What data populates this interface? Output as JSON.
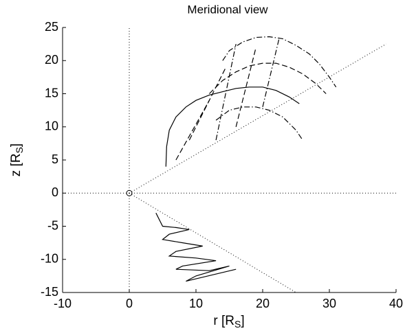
{
  "chart_data": {
    "type": "line",
    "title": "Meridional view",
    "xlabel": {
      "text": "r [R",
      "sub": "S",
      "end": "]"
    },
    "ylabel": {
      "text": "z [R",
      "sub": "S",
      "end": "]"
    },
    "xlim": [
      -10,
      40
    ],
    "xticks": [
      -10,
      0,
      10,
      20,
      30,
      40
    ],
    "ylim": [
      -15,
      25
    ],
    "yticks": [
      -15,
      -10,
      -5,
      0,
      5,
      10,
      15,
      20,
      25
    ],
    "series": [
      {
        "color": "#000000",
        "style": "dotted",
        "x": [
          -10,
          40
        ],
        "values": [
          0,
          0
        ]
      },
      {
        "color": "#000000",
        "style": "dotted",
        "x": [
          0,
          0
        ],
        "values": [
          -15,
          25
        ]
      },
      {
        "color": "#000000",
        "style": "dotted",
        "x": [
          0,
          38.5
        ],
        "values": [
          0,
          22.5
        ]
      },
      {
        "color": "#000000",
        "style": "dotted",
        "x": [
          0,
          25
        ],
        "values": [
          0,
          -15
        ]
      },
      {
        "color": "#000000",
        "style": "solid",
        "x": [
          5.5,
          5.6,
          6,
          7,
          8.5,
          10,
          12,
          14,
          16,
          18,
          20,
          22,
          24,
          25.5
        ],
        "values": [
          4,
          7,
          9.5,
          11.5,
          13,
          14,
          14.8,
          15.3,
          15.8,
          16,
          16,
          15.5,
          14.5,
          13.5
        ]
      },
      {
        "color": "#000000",
        "style": "dashdot",
        "x": [
          14,
          15,
          17,
          19,
          21,
          23,
          25,
          27,
          28.5,
          30,
          31
        ],
        "values": [
          20,
          21.5,
          22.8,
          23.5,
          23.6,
          23.3,
          22.3,
          21,
          19.5,
          17.5,
          16
        ]
      },
      {
        "color": "#000000",
        "style": "dashed",
        "x": [
          12,
          14,
          16,
          18,
          20,
          22,
          24,
          26,
          28,
          29.5
        ],
        "values": [
          15,
          17,
          18.3,
          19.2,
          19.6,
          19.6,
          19,
          18,
          16.5,
          15
        ]
      },
      {
        "color": "#000000",
        "style": "dashdot",
        "x": [
          13,
          15,
          17,
          19,
          21,
          23,
          25,
          26
        ],
        "values": [
          11,
          12.5,
          13,
          13,
          12.5,
          11.5,
          9.5,
          8
        ]
      },
      {
        "color": "#000000",
        "style": "dashed",
        "x": [
          9,
          14.5
        ],
        "values": [
          8,
          19
        ]
      },
      {
        "color": "#000000",
        "style": "dashdot",
        "x": [
          13,
          16
        ],
        "values": [
          8,
          22.5
        ]
      },
      {
        "color": "#000000",
        "style": "dashed",
        "x": [
          16,
          19
        ],
        "values": [
          10,
          22
        ]
      },
      {
        "color": "#000000",
        "style": "dashdot",
        "x": [
          20,
          22.5
        ],
        "values": [
          13,
          23.5
        ]
      },
      {
        "color": "#000000",
        "style": "dashed",
        "x": [
          7,
          12
        ],
        "values": [
          5,
          14
        ]
      },
      {
        "color": "#000000",
        "style": "solid",
        "x": [
          4,
          5,
          7,
          9,
          6,
          5,
          8,
          11,
          7,
          6,
          10,
          13,
          8,
          7,
          12,
          15,
          10,
          8.5,
          16
        ],
        "values": [
          -3,
          -5,
          -5.2,
          -5.5,
          -6.2,
          -7,
          -7.5,
          -8,
          -8.8,
          -9.5,
          -9.8,
          -10.2,
          -11,
          -11.5,
          -11.7,
          -11,
          -12.5,
          -13.3,
          -11.5
        ]
      }
    ],
    "markers": {
      "x": [
        0
      ],
      "values": [
        0
      ]
    }
  }
}
